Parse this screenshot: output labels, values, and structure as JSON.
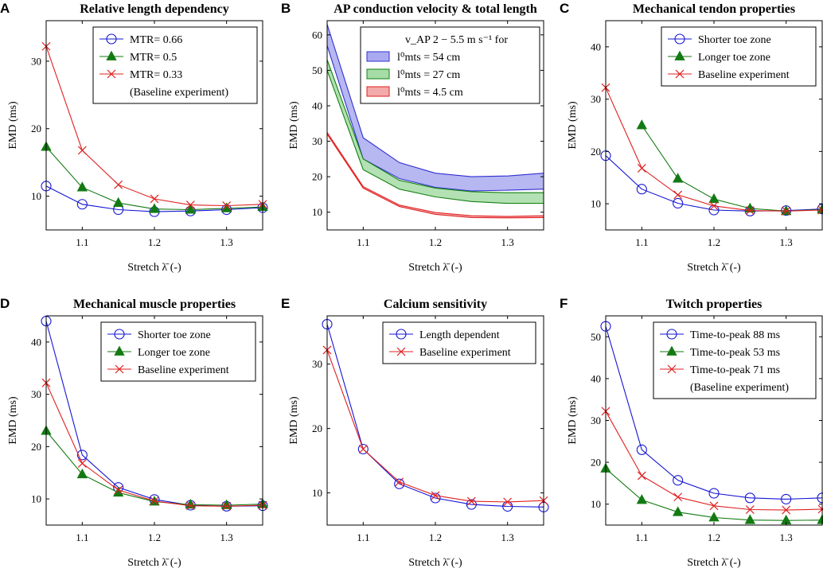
{
  "figure": "EMD vs stretch panels",
  "chart_data": [
    {
      "letter": "A",
      "type": "line",
      "title": "Relative length dependency",
      "xlabel": "Stretch λ̄ (-)",
      "ylabel": "EMD (ms)",
      "xlim": [
        1.05,
        1.35
      ],
      "ylim": [
        5,
        36
      ],
      "xticks": [
        "1.1",
        "1.2",
        "1.3"
      ],
      "yticks": [
        10,
        20,
        30
      ],
      "legend_position": "top-right",
      "x": [
        1.05,
        1.1,
        1.15,
        1.2,
        1.25,
        1.3,
        1.35
      ],
      "series": [
        {
          "name": "MTR= 0.66",
          "name2": "",
          "color": "#1515d4",
          "marker": "circle",
          "values": [
            11.5,
            8.8,
            8.0,
            7.7,
            7.8,
            8.0,
            8.3
          ]
        },
        {
          "name": "MTR= 0.5",
          "name2": "",
          "color": "#137a13",
          "marker": "triangle",
          "values": [
            17.3,
            11.3,
            9.0,
            8.1,
            8.0,
            8.2,
            8.4
          ]
        },
        {
          "name": "MTR= 0.33",
          "name2": "(Baseline experiment)",
          "color": "#e02020",
          "marker": "cross",
          "values": [
            32.2,
            16.8,
            11.7,
            9.6,
            8.7,
            8.6,
            8.8
          ]
        }
      ]
    },
    {
      "letter": "B",
      "type": "area",
      "title": "AP conduction velocity & total length",
      "xlabel": "Stretch λ̄ (-)",
      "ylabel": "EMD (ms)",
      "xlim": [
        1.05,
        1.35
      ],
      "ylim": [
        5,
        64
      ],
      "xticks": [
        "1.1",
        "1.2",
        "1.3"
      ],
      "yticks": [
        10,
        20,
        30,
        40,
        50,
        60
      ],
      "legend_position": "top-right",
      "legend_header": "v_AP 2 − 5.5 m s⁻¹ for",
      "x": [
        1.05,
        1.1,
        1.15,
        1.2,
        1.25,
        1.3,
        1.35
      ],
      "series": [
        {
          "name": "l⁰mts = 54 cm",
          "color": "#3030d0",
          "fill": "#aaaaf0",
          "upper": [
            63,
            31,
            24,
            21,
            20,
            20.2,
            21
          ],
          "lower": [
            57,
            25,
            19.5,
            17,
            16,
            16.2,
            16.5
          ]
        },
        {
          "name": "l⁰mts = 27 cm",
          "color": "#138013",
          "fill": "#a6dca6",
          "upper": [
            53,
            25,
            19,
            16.8,
            15.8,
            15.5,
            15.5
          ],
          "lower": [
            50,
            22,
            16.5,
            14.3,
            13,
            12.5,
            12.5
          ]
        },
        {
          "name": "l⁰mts = 4.5 cm",
          "color": "#e02020",
          "fill": "#f2aaaa",
          "upper": [
            32.5,
            17.2,
            12.0,
            9.9,
            9.0,
            8.8,
            9.0
          ],
          "lower": [
            32.0,
            16.8,
            11.6,
            9.4,
            8.5,
            8.4,
            8.5
          ]
        }
      ]
    },
    {
      "letter": "C",
      "type": "line",
      "title": "Mechanical tendon properties",
      "xlabel": "Stretch λ̄ (-)",
      "ylabel": "EMD (ms)",
      "xlim": [
        1.05,
        1.35
      ],
      "ylim": [
        5,
        45
      ],
      "xticks": [
        "1.1",
        "1.2",
        "1.3"
      ],
      "yticks": [
        10,
        20,
        30,
        40
      ],
      "legend_position": "top-right",
      "series": [
        {
          "name": "Shorter toe zone",
          "name2": "",
          "color": "#1515d4",
          "marker": "circle",
          "x": [
            1.05,
            1.1,
            1.15,
            1.2,
            1.25,
            1.3,
            1.35
          ],
          "values": [
            19.2,
            12.8,
            10.1,
            8.8,
            8.6,
            8.7,
            9.0
          ]
        },
        {
          "name": "Longer toe zone",
          "name2": "",
          "color": "#137a13",
          "marker": "triangle",
          "x": [
            1.1,
            1.15,
            1.2,
            1.25,
            1.3,
            1.35
          ],
          "values": [
            25.0,
            14.8,
            10.9,
            9.1,
            8.6,
            8.9
          ]
        },
        {
          "name": "Baseline experiment",
          "name2": "",
          "color": "#e02020",
          "marker": "cross",
          "x": [
            1.05,
            1.1,
            1.15,
            1.2,
            1.25,
            1.3,
            1.35
          ],
          "values": [
            32.2,
            16.8,
            11.7,
            9.6,
            8.7,
            8.6,
            8.8
          ]
        }
      ]
    },
    {
      "letter": "D",
      "type": "line",
      "title": "Mechanical muscle properties",
      "xlabel": "Stretch λ̄ (-)",
      "ylabel": "EMD (ms)",
      "xlim": [
        1.05,
        1.35
      ],
      "ylim": [
        5,
        45
      ],
      "xticks": [
        "1.1",
        "1.2",
        "1.3"
      ],
      "yticks": [
        10,
        20,
        30,
        40
      ],
      "legend_position": "top-right",
      "x": [
        1.05,
        1.1,
        1.15,
        1.2,
        1.25,
        1.3,
        1.35
      ],
      "series": [
        {
          "name": "Shorter toe zone",
          "name2": "",
          "color": "#1515d4",
          "marker": "circle",
          "values": [
            44.0,
            18.4,
            12.2,
            9.9,
            8.8,
            8.6,
            8.7
          ]
        },
        {
          "name": "Longer toe zone",
          "name2": "",
          "color": "#137a13",
          "marker": "triangle",
          "values": [
            23.0,
            14.7,
            11.2,
            9.5,
            8.9,
            8.8,
            9.0
          ]
        },
        {
          "name": "Baseline experiment",
          "name2": "",
          "color": "#e02020",
          "marker": "cross",
          "values": [
            32.2,
            16.8,
            11.7,
            9.6,
            8.7,
            8.6,
            8.8
          ]
        }
      ]
    },
    {
      "letter": "E",
      "type": "line",
      "title": "Calcium sensitivity",
      "xlabel": "Stretch λ̄ (-)",
      "ylabel": "EMD (ms)",
      "xlim": [
        1.05,
        1.35
      ],
      "ylim": [
        5,
        37.5
      ],
      "xticks": [
        "1.1",
        "1.2",
        "1.3"
      ],
      "yticks": [
        10,
        20,
        30
      ],
      "legend_position": "top-right",
      "x": [
        1.05,
        1.1,
        1.15,
        1.2,
        1.25,
        1.3,
        1.35
      ],
      "series": [
        {
          "name": "Length dependent",
          "name2": "",
          "color": "#1515d4",
          "marker": "circle",
          "values": [
            36.2,
            16.8,
            11.4,
            9.2,
            8.2,
            7.9,
            7.8
          ]
        },
        {
          "name": "Baseline experiment",
          "name2": "",
          "color": "#e02020",
          "marker": "cross",
          "values": [
            32.2,
            16.8,
            11.7,
            9.6,
            8.7,
            8.6,
            8.8
          ]
        }
      ]
    },
    {
      "letter": "F",
      "type": "line",
      "title": "Twitch properties",
      "xlabel": "Stretch λ̄ (-)",
      "ylabel": "EMD (ms)",
      "xlim": [
        1.05,
        1.35
      ],
      "ylim": [
        5,
        55
      ],
      "xticks": [
        "1.1",
        "1.2",
        "1.3"
      ],
      "yticks": [
        10,
        20,
        30,
        40,
        50
      ],
      "legend_position": "top-right",
      "x": [
        1.05,
        1.1,
        1.15,
        1.2,
        1.25,
        1.3,
        1.35
      ],
      "series": [
        {
          "name": "Time-to-peak 88 ms",
          "name2": "",
          "color": "#1515d4",
          "marker": "circle",
          "values": [
            52.5,
            23.0,
            15.7,
            12.6,
            11.5,
            11.2,
            11.5
          ]
        },
        {
          "name": "Time-to-peak 53 ms",
          "name2": "",
          "color": "#137a13",
          "marker": "triangle",
          "values": [
            18.5,
            11.0,
            8.1,
            6.8,
            6.2,
            6.1,
            6.2
          ]
        },
        {
          "name": "Time-to-peak 71 ms",
          "name2": "(Baseline experiment)",
          "color": "#e02020",
          "marker": "cross",
          "values": [
            32.2,
            16.8,
            11.7,
            9.6,
            8.7,
            8.6,
            8.8
          ]
        }
      ]
    }
  ]
}
